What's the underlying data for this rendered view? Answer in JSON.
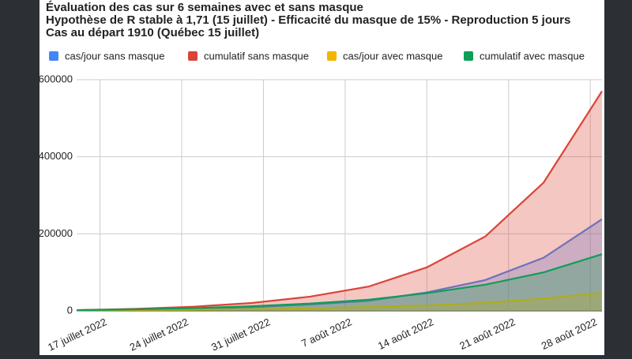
{
  "chart_data": {
    "type": "area",
    "title": [
      "Évaluation des cas sur 6 semaines avec et sans masque",
      "Hypothèse de R stable à 1,71 (15 juillet) - Efficacité du masque de 15% - Reproduction 5 jours",
      "Cas au départ 1910 (Québec 15 juillet)"
    ],
    "x": [
      "2022-07-15",
      "2022-07-20",
      "2022-07-25",
      "2022-07-30",
      "2022-08-04",
      "2022-08-09",
      "2022-08-14",
      "2022-08-19",
      "2022-08-24",
      "2022-08-29"
    ],
    "series": [
      {
        "name": "cas/jour sans masque",
        "color": "#4285f4",
        "values": [
          1910,
          3300,
          5600,
          9700,
          16500,
          26000,
          48000,
          80000,
          138000,
          238000
        ]
      },
      {
        "name": "cumulatif sans masque",
        "color": "#db4437",
        "values": [
          1910,
          5200,
          10800,
          20500,
          37000,
          63000,
          113000,
          193000,
          333000,
          570000
        ]
      },
      {
        "name": "cas/jour avec masque",
        "color": "#f4b400",
        "values": [
          1910,
          2300,
          3000,
          4500,
          6500,
          10000,
          14000,
          21000,
          32000,
          47000
        ]
      },
      {
        "name": "cumulatif avec masque",
        "color": "#0f9d58",
        "values": [
          1910,
          4000,
          7000,
          12000,
          19000,
          29000,
          46000,
          68000,
          100000,
          147000
        ]
      }
    ],
    "xlim": [
      "2022-07-15",
      "2022-08-29"
    ],
    "xticks": [
      {
        "value": "2022-07-17",
        "label": "17 juillet 2022"
      },
      {
        "value": "2022-07-24",
        "label": "24 juillet 2022"
      },
      {
        "value": "2022-07-31",
        "label": "31 juillet 2022"
      },
      {
        "value": "2022-08-07",
        "label": "7 août 2022"
      },
      {
        "value": "2022-08-14",
        "label": "14 août 2022"
      },
      {
        "value": "2022-08-21",
        "label": "21 août 2022"
      },
      {
        "value": "2022-08-28",
        "label": "28 août 2022"
      }
    ],
    "ylim": [
      0,
      600000
    ],
    "yticks": [
      0,
      200000,
      400000,
      600000
    ],
    "grid": true,
    "legend": "top"
  }
}
